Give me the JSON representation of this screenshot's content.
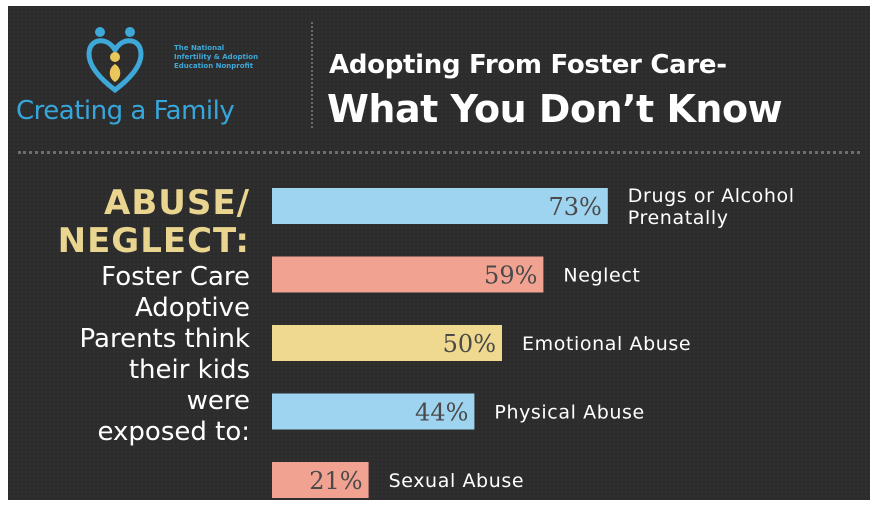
{
  "logo": {
    "org_lines": [
      "The National",
      "Infertility & Adoption",
      "Education Nonprofit"
    ],
    "brand": "Creating a Family"
  },
  "title": {
    "line1": "Adopting From Foster Care-",
    "line2": "What You Don’t Know"
  },
  "side": {
    "heading_line1": "ABUSE/",
    "heading_line2": "NEGLECT:",
    "body_lines": [
      "Foster Care",
      "Adoptive",
      "Parents think",
      "their kids",
      "were",
      "exposed to:"
    ]
  },
  "colors": {
    "background": "#2c2c2c",
    "heading_accent": "#e9d58f",
    "brand_blue": "#36a7dc",
    "bar_blue": "#9fd4f0",
    "bar_salmon": "#f1a291",
    "bar_yellow": "#efd98e",
    "bar_text": "#4a4a4a"
  },
  "chart_data": {
    "type": "bar",
    "orientation": "horizontal",
    "unit": "%",
    "xlim": [
      0,
      100
    ],
    "bars": [
      {
        "label_lines": [
          "Drugs or Alcohol",
          "Prenatally"
        ],
        "value": 73,
        "value_label": "73%",
        "color": "#9fd4f0"
      },
      {
        "label_lines": [
          "Neglect"
        ],
        "value": 59,
        "value_label": "59%",
        "color": "#f1a291"
      },
      {
        "label_lines": [
          "Emotional Abuse"
        ],
        "value": 50,
        "value_label": "50%",
        "color": "#efd98e"
      },
      {
        "label_lines": [
          "Physical Abuse"
        ],
        "value": 44,
        "value_label": "44%",
        "color": "#9fd4f0"
      },
      {
        "label_lines": [
          "Sexual Abuse"
        ],
        "value": 21,
        "value_label": "21%",
        "color": "#f1a291"
      }
    ]
  }
}
